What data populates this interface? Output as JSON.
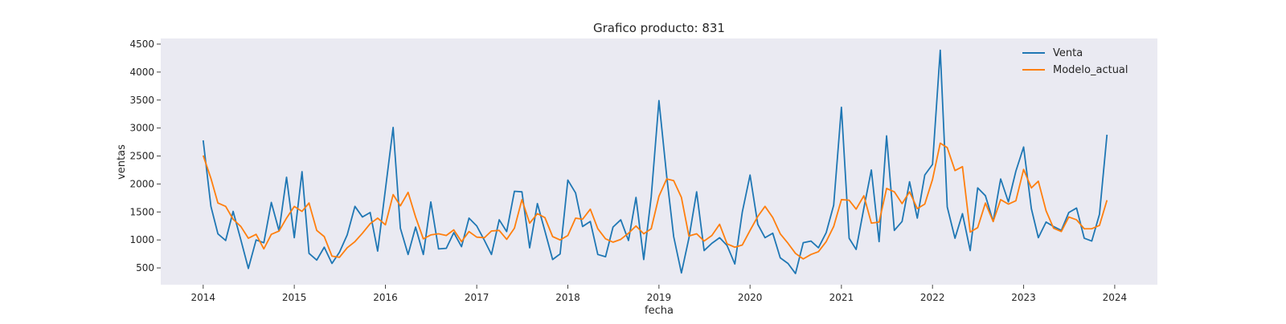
{
  "chart_data": {
    "type": "line",
    "title": "Grafico producto: 831",
    "xlabel": "fecha",
    "ylabel": "ventas",
    "xlim": [
      "2013-07-15",
      "2024-06-20"
    ],
    "ylim": [
      200,
      4600
    ],
    "x_ticks": [
      {
        "date": "2014-01-01",
        "label": "2014"
      },
      {
        "date": "2015-01-01",
        "label": "2015"
      },
      {
        "date": "2016-01-01",
        "label": "2016"
      },
      {
        "date": "2017-01-01",
        "label": "2017"
      },
      {
        "date": "2018-01-01",
        "label": "2018"
      },
      {
        "date": "2019-01-01",
        "label": "2019"
      },
      {
        "date": "2020-01-01",
        "label": "2020"
      },
      {
        "date": "2021-01-01",
        "label": "2021"
      },
      {
        "date": "2022-01-01",
        "label": "2022"
      },
      {
        "date": "2023-01-01",
        "label": "2023"
      },
      {
        "date": "2024-01-01",
        "label": "2024"
      }
    ],
    "y_ticks": [
      500,
      1000,
      1500,
      2000,
      2500,
      3000,
      3500,
      4000,
      4500
    ],
    "grid": false,
    "legend_placement": "top-right",
    "background": "#eaeaf2",
    "x_start": "2014-01",
    "x_step": "1 month",
    "series": [
      {
        "name": "Venta",
        "color": "#1f77b4",
        "values": [
          2780,
          1600,
          1110,
          990,
          1510,
          1000,
          490,
          1000,
          950,
          1670,
          1160,
          2120,
          1040,
          2220,
          760,
          640,
          870,
          580,
          780,
          1090,
          1600,
          1410,
          1490,
          800,
          1900,
          3010,
          1210,
          740,
          1230,
          740,
          1680,
          840,
          850,
          1130,
          880,
          1390,
          1250,
          990,
          740,
          1360,
          1150,
          1870,
          1860,
          860,
          1650,
          1160,
          650,
          750,
          2070,
          1840,
          1240,
          1330,
          740,
          700,
          1230,
          1360,
          990,
          1760,
          650,
          1770,
          3490,
          2140,
          1060,
          410,
          1030,
          1860,
          810,
          940,
          1040,
          900,
          570,
          1500,
          2160,
          1280,
          1040,
          1120,
          680,
          580,
          400,
          950,
          980,
          860,
          1130,
          1620,
          3370,
          1030,
          830,
          1570,
          2250,
          970,
          2860,
          1170,
          1330,
          2040,
          1390,
          2160,
          2350,
          4390,
          1590,
          1030,
          1470,
          810,
          1930,
          1790,
          1330,
          2090,
          1680,
          2230,
          2660,
          1560,
          1040,
          1320,
          1240,
          1170,
          1490,
          1570,
          1030,
          980,
          1460,
          2880
        ]
      },
      {
        "name": "Modelo_actual",
        "color": "#ff7f0e",
        "values": [
          2510,
          2100,
          1660,
          1600,
          1370,
          1240,
          1030,
          1100,
          840,
          1100,
          1160,
          1390,
          1600,
          1510,
          1660,
          1170,
          1060,
          710,
          690,
          860,
          970,
          1120,
          1290,
          1390,
          1270,
          1810,
          1610,
          1850,
          1410,
          1020,
          1090,
          1110,
          1080,
          1180,
          970,
          1150,
          1050,
          1040,
          1160,
          1170,
          1010,
          1210,
          1720,
          1300,
          1470,
          1400,
          1060,
          1000,
          1080,
          1390,
          1370,
          1550,
          1200,
          1020,
          960,
          1010,
          1120,
          1250,
          1110,
          1200,
          1780,
          2090,
          2060,
          1760,
          1070,
          1110,
          980,
          1080,
          1280,
          930,
          870,
          910,
          1170,
          1420,
          1600,
          1400,
          1110,
          940,
          760,
          660,
          740,
          790,
          970,
          1240,
          1720,
          1710,
          1550,
          1790,
          1300,
          1320,
          1920,
          1860,
          1650,
          1860,
          1560,
          1640,
          2080,
          2730,
          2650,
          2240,
          2310,
          1140,
          1220,
          1660,
          1330,
          1720,
          1640,
          1700,
          2260,
          1930,
          2050,
          1520,
          1210,
          1150,
          1410,
          1360,
          1200,
          1200,
          1260,
          1710
        ]
      }
    ]
  }
}
